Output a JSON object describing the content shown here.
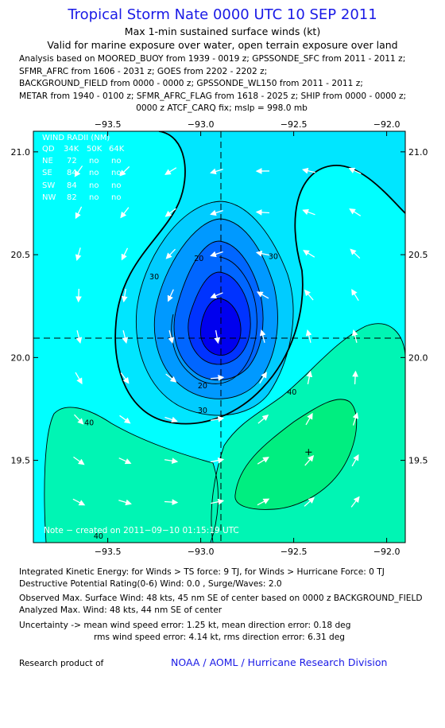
{
  "title": "Tropical Storm Nate 0000 UTC 10 SEP 2011",
  "subtitle1": "Max 1-min sustained surface winds (kt)",
  "subtitle2": "Valid for marine exposure over water, open terrain exposure over land",
  "analysis_lines": [
    "Analysis based on MOORED_BUOY from 1939 - 0019 z; GPSSONDE_SFC from 2011 - 2011 z;",
    "SFMR_AFRC from 1606 - 2031 z; GOES from 2202 - 2202 z;",
    "BACKGROUND_FIELD from 0000 - 0000 z; GPSSONDE_WL150 from 2011 - 2011 z;",
    "METAR from 1940 - 0100 z; SFMR_AFRC_FLAG from 1618 - 2025 z; SHIP from 0000 - 0000 z;"
  ],
  "fix_line": "0000 z ATCF_CARQ fix; mslp = 998.0 mb",
  "chart_data": {
    "type": "contour-map",
    "x_axis": {
      "range": [
        -93.9,
        -91.9
      ],
      "ticks": [
        -93.5,
        -93.0,
        -92.5,
        -92.0
      ],
      "tick_labels": [
        "−93.5",
        "−93.0",
        "−92.5",
        "−92.0"
      ]
    },
    "y_axis": {
      "range": [
        19.1,
        21.1
      ],
      "ticks": [
        19.5,
        20.0,
        20.5,
        21.0
      ],
      "tick_labels": [
        "19.5",
        "20.0",
        "20.5",
        "21.0"
      ]
    },
    "storm_center": {
      "lon": -92.88,
      "lat": 20.1
    },
    "max_wind_marker": {
      "lon": -92.42,
      "lat": 19.54
    },
    "contour_labels": [
      {
        "text": "30",
        "lon": -93.25,
        "lat": 20.38
      },
      {
        "text": "20",
        "lon": -93.01,
        "lat": 20.47
      },
      {
        "text": "30",
        "lon": -92.61,
        "lat": 20.48
      },
      {
        "text": "20",
        "lon": -92.99,
        "lat": 19.85
      },
      {
        "text": "30",
        "lon": -92.99,
        "lat": 19.73
      },
      {
        "text": "40",
        "lon": -93.6,
        "lat": 19.67
      },
      {
        "text": "40",
        "lon": -92.51,
        "lat": 19.82
      },
      {
        "text": "40",
        "lon": -93.55,
        "lat": 19.12
      }
    ],
    "wind_radii": {
      "title": "WIND RADII (NM)",
      "columns": [
        "QD",
        "34K",
        "50K",
        "64K"
      ],
      "rows": [
        [
          "NE",
          "72",
          "no",
          "no"
        ],
        [
          "SE",
          "84",
          "no",
          "no"
        ],
        [
          "SW",
          "84",
          "no",
          "no"
        ],
        [
          "NW",
          "82",
          "no",
          "no"
        ]
      ]
    },
    "note": "Note − created on 2011−09−10 01:15:19 UTC",
    "colors": {
      "lt30": "#00e6ff",
      "30_40": "#00ffff",
      "40_50": "#00f5b4",
      "50_60": "#00ee80",
      "weak_center": [
        "#00ccff",
        "#0099ff",
        "#0066ff",
        "#0033ff",
        "#0000ee"
      ]
    }
  },
  "footer": [
    "Integrated Kinetic Energy:  for Winds > TS force: 9 TJ,  for Winds > Hurricane Force: 0 TJ",
    "Destructive Potential Rating(0-6)   Wind: 0.0 , Surge/Waves: 2.0",
    "Observed Max. Surface Wind: 48 kts, 45 nm SE of center based on 0000 z BACKGROUND_FIELD",
    "Analyzed Max. Wind: 48 kts, 44 nm SE of center",
    "Uncertainty -> mean wind speed error: 1.25 kt,   mean direction error: 0.18 deg",
    "rms wind speed error: 4.14 kt,   rms direction error: 6.31 deg"
  ],
  "research_label": "Research product of",
  "noaa_label": "NOAA / AOML / Hurricane Research Division"
}
